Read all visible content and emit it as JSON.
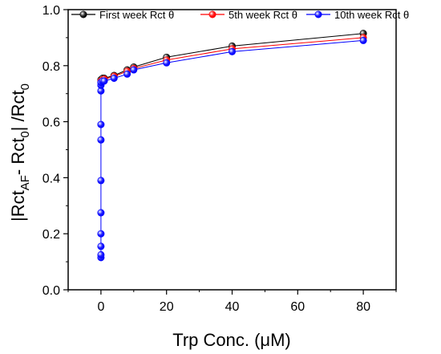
{
  "chart_data": {
    "type": "line",
    "xlabel": "Trp Conc. (μM)",
    "ylabel_parts": {
      "open": "|Rct",
      "sub1": "AF",
      "mid": "- Rct",
      "sub2": "0",
      "close": "| /Rct",
      "sub3": "0"
    },
    "xlim": [
      -10,
      90
    ],
    "ylim": [
      0.0,
      1.0
    ],
    "xticks": [
      0,
      20,
      40,
      60,
      80
    ],
    "xtick_labels": [
      "0",
      "20",
      "40",
      "60",
      "80"
    ],
    "yticks": [
      0.0,
      0.2,
      0.4,
      0.6,
      0.8,
      1.0
    ],
    "ytick_labels": [
      "0.0",
      "0.2",
      "0.4",
      "0.6",
      "0.8",
      "1.0"
    ],
    "legend_position": "top",
    "series": [
      {
        "name": "First week Rct θ",
        "color": "#000000",
        "marker": "#333333",
        "x": [
          0,
          0.5,
          1,
          4,
          8,
          10,
          20,
          40,
          80
        ],
        "y": [
          0.75,
          0.755,
          0.755,
          0.765,
          0.785,
          0.795,
          0.83,
          0.87,
          0.915
        ]
      },
      {
        "name": "5th week Rct θ",
        "color": "#ff0000",
        "marker": "#ff2020",
        "x": [
          0,
          0.5,
          1,
          4,
          8,
          10,
          20,
          40,
          80
        ],
        "y": [
          0.745,
          0.75,
          0.752,
          0.762,
          0.78,
          0.79,
          0.82,
          0.86,
          0.9
        ]
      },
      {
        "name": "10th week Rct θ",
        "color": "#0000ff",
        "marker": "#2020ff",
        "x": [
          0,
          0,
          0,
          0,
          0,
          0,
          0,
          0,
          0,
          0,
          0,
          0.5,
          1,
          4,
          8,
          10,
          20,
          40,
          80
        ],
        "y": [
          0.115,
          0.125,
          0.155,
          0.2,
          0.275,
          0.39,
          0.535,
          0.59,
          0.71,
          0.73,
          0.74,
          0.745,
          0.745,
          0.755,
          0.77,
          0.785,
          0.81,
          0.85,
          0.89
        ]
      }
    ]
  }
}
